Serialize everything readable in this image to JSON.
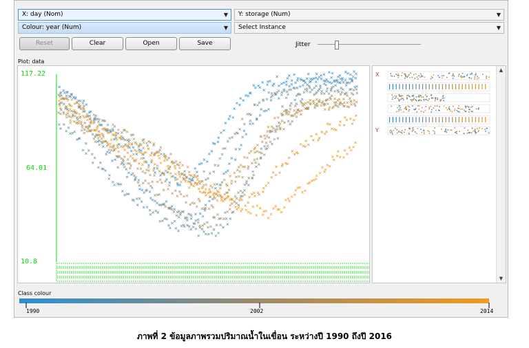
{
  "controls": {
    "x_axis": "X: day (Nom)",
    "y_axis": "Y: storage (Num)",
    "colour": "Colour: year (Num)",
    "instance": "Select Instance"
  },
  "buttons": {
    "reset": "Reset",
    "clear": "Clear",
    "open": "Open",
    "save": "Save"
  },
  "jitter_label": "Jitter",
  "jitter_level": 0.1,
  "plot_title": "Plot: data",
  "class_colour_label": "Class colour",
  "panel_labels": {
    "x": "X",
    "y": "Y"
  },
  "colors": {
    "low": "#2b8fd6",
    "high": "#f29a1d",
    "mid": "#9a8a6a",
    "axis": "#00e000"
  },
  "caption": "ภาพที่ 2 ข้อมูลภาพรวมปริมาณน้ำในเขื่อน ระหว่างปี 1990 ถึงปี 2016",
  "chart_data": {
    "type": "scatter",
    "x_field": "day",
    "y_field": "storage",
    "colour_field": "year",
    "y_ticks": [
      "117.22",
      "64.01",
      "10.8"
    ],
    "ylim": [
      10.8,
      117.22
    ],
    "colour_ticks": [
      "1990",
      "2002",
      "2014"
    ],
    "colour_range": [
      1990,
      2014
    ],
    "series": [
      {
        "year": 1990,
        "x": [
          0,
          0.05,
          0.1,
          0.15,
          0.2,
          0.25,
          0.3,
          0.35,
          0.4,
          0.45,
          0.5,
          0.55,
          0.6,
          0.65,
          0.7,
          0.75,
          0.8,
          0.85,
          0.9,
          0.95,
          1
        ],
        "y": [
          110,
          104,
          96,
          88,
          80,
          74,
          67,
          60,
          56,
          60,
          72,
          88,
          100,
          108,
          112,
          114,
          115,
          115,
          116,
          116,
          116
        ]
      },
      {
        "year": 1993,
        "x": [
          0,
          0.05,
          0.1,
          0.15,
          0.2,
          0.25,
          0.3,
          0.35,
          0.4,
          0.45,
          0.5,
          0.55,
          0.6,
          0.65,
          0.7,
          0.75,
          0.8,
          0.85,
          0.9,
          0.95,
          1
        ],
        "y": [
          100,
          94,
          86,
          76,
          66,
          58,
          50,
          43,
          38,
          35,
          42,
          60,
          76,
          92,
          100,
          108,
          111,
          113,
          114,
          115,
          115
        ]
      },
      {
        "year": 1996,
        "x": [
          0,
          0.05,
          0.1,
          0.15,
          0.2,
          0.25,
          0.3,
          0.35,
          0.4,
          0.45,
          0.5,
          0.55,
          0.6,
          0.65,
          0.7,
          0.75,
          0.8,
          0.85,
          0.9,
          0.95,
          1
        ],
        "y": [
          90,
          82,
          72,
          62,
          54,
          46,
          40,
          34,
          30,
          28,
          26,
          30,
          44,
          62,
          80,
          96,
          104,
          108,
          110,
          111,
          112
        ]
      },
      {
        "year": 1999,
        "x": [
          0,
          0.05,
          0.1,
          0.15,
          0.2,
          0.25,
          0.3,
          0.35,
          0.4,
          0.45,
          0.5,
          0.55,
          0.6,
          0.65,
          0.7,
          0.75,
          0.8,
          0.85,
          0.9,
          0.95,
          1
        ],
        "y": [
          108,
          102,
          95,
          88,
          84,
          80,
          76,
          70,
          62,
          56,
          60,
          72,
          86,
          98,
          104,
          106,
          108,
          108,
          109,
          109,
          110
        ]
      },
      {
        "year": 2002,
        "x": [
          0,
          0.05,
          0.1,
          0.15,
          0.2,
          0.25,
          0.3,
          0.35,
          0.4,
          0.45,
          0.5,
          0.55,
          0.6,
          0.65,
          0.7,
          0.75,
          0.8,
          0.85,
          0.9,
          0.95,
          1
        ],
        "y": [
          104,
          98,
          90,
          80,
          70,
          60,
          52,
          44,
          38,
          34,
          32,
          36,
          48,
          62,
          76,
          88,
          96,
          100,
          102,
          103,
          104
        ]
      },
      {
        "year": 2005,
        "x": [
          0,
          0.05,
          0.1,
          0.15,
          0.2,
          0.25,
          0.3,
          0.35,
          0.4,
          0.45,
          0.5,
          0.55,
          0.6,
          0.65,
          0.7,
          0.75,
          0.8,
          0.85,
          0.9,
          0.95,
          1
        ],
        "y": [
          96,
          90,
          84,
          78,
          72,
          66,
          60,
          54,
          48,
          44,
          42,
          48,
          58,
          70,
          82,
          92,
          98,
          100,
          101,
          101,
          102
        ]
      },
      {
        "year": 2008,
        "x": [
          0,
          0.05,
          0.1,
          0.15,
          0.2,
          0.25,
          0.3,
          0.35,
          0.4,
          0.45,
          0.5,
          0.55,
          0.6,
          0.65,
          0.7,
          0.75,
          0.8,
          0.85,
          0.9,
          0.95,
          1
        ],
        "y": [
          106,
          100,
          94,
          88,
          84,
          80,
          76,
          72,
          66,
          58,
          52,
          54,
          62,
          74,
          86,
          94,
          98,
          100,
          100,
          101,
          101
        ]
      },
      {
        "year": 2011,
        "x": [
          0,
          0.05,
          0.1,
          0.15,
          0.2,
          0.25,
          0.3,
          0.35,
          0.4,
          0.45,
          0.5,
          0.55,
          0.6,
          0.65,
          0.7,
          0.75,
          0.8,
          0.85,
          0.9,
          0.95,
          1
        ],
        "y": [
          98,
          92,
          86,
          80,
          74,
          70,
          66,
          62,
          58,
          54,
          50,
          46,
          44,
          48,
          56,
          66,
          74,
          80,
          86,
          90,
          92
        ]
      },
      {
        "year": 2014,
        "x": [
          0,
          0.05,
          0.1,
          0.15,
          0.2,
          0.25,
          0.3,
          0.35,
          0.4,
          0.45,
          0.5,
          0.55,
          0.6,
          0.65,
          0.7,
          0.75,
          0.8,
          0.85,
          0.9,
          0.95,
          1
        ],
        "y": [
          102,
          96,
          90,
          84,
          80,
          76,
          72,
          68,
          62,
          56,
          50,
          46,
          42,
          40,
          38,
          42,
          50,
          58,
          66,
          72,
          76
        ]
      }
    ]
  }
}
